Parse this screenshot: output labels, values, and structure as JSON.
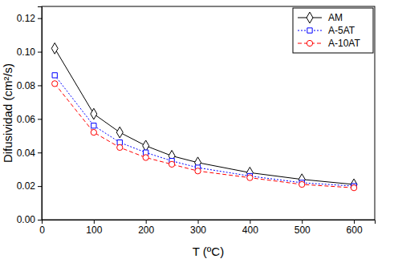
{
  "chart_data": {
    "type": "line",
    "x_label": "T (ºC)",
    "y_label": "Difusividad (cm²/s)",
    "x": [
      25,
      100,
      150,
      200,
      250,
      300,
      400,
      500,
      600
    ],
    "series": [
      {
        "name": "AM",
        "color": "#000000",
        "marker": "diamond",
        "line_style": "solid",
        "values": [
          0.102,
          0.063,
          0.052,
          0.044,
          0.038,
          0.034,
          0.028,
          0.024,
          0.021
        ]
      },
      {
        "name": "A-5AT",
        "color": "#0000ff",
        "marker": "square",
        "line_style": "dotted",
        "values": [
          0.086,
          0.056,
          0.046,
          0.04,
          0.035,
          0.031,
          0.026,
          0.022,
          0.02
        ]
      },
      {
        "name": "A-10AT",
        "color": "#ff0000",
        "marker": "circle",
        "line_style": "dashed",
        "values": [
          0.081,
          0.052,
          0.043,
          0.037,
          0.033,
          0.029,
          0.025,
          0.021,
          0.019
        ]
      }
    ],
    "xlim": [
      0,
      640
    ],
    "xticks": [
      0,
      100,
      200,
      300,
      400,
      500,
      600
    ],
    "ylim": [
      0,
      0.127
    ],
    "yticks": [
      {
        "value": 0,
        "label": "0.00"
      },
      {
        "value": 0.02,
        "label": "0.02"
      },
      {
        "value": 0.04,
        "label": "0.04"
      },
      {
        "value": 0.06,
        "label": "0.06"
      },
      {
        "value": 0.08,
        "label": "0.08"
      },
      {
        "value": 0.1,
        "label": "0.10"
      },
      {
        "value": 0.12,
        "label": "0.12"
      }
    ],
    "legend": "upper right",
    "grid": false
  }
}
